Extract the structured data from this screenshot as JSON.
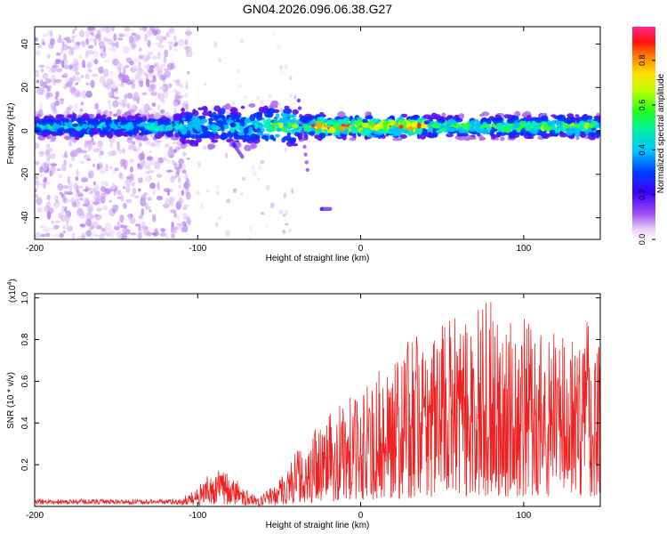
{
  "title": "GN04.2026.096.06.38.G27",
  "chart_data": [
    {
      "type": "heatmap",
      "name": "spectrogram",
      "xlabel": "Height of straight line (km)",
      "ylabel": "Frequency (Hz)",
      "xlim": [
        -200,
        147
      ],
      "ylim": [
        -50,
        48
      ],
      "xticks": [
        {
          "value": -200,
          "label": "-200"
        },
        {
          "value": -100,
          "label": "-100"
        },
        {
          "value": 0,
          "label": "0"
        },
        {
          "value": 100,
          "label": "100"
        }
      ],
      "yticks": [
        {
          "value": 40,
          "label": "40"
        },
        {
          "value": 20,
          "label": "20"
        },
        {
          "value": 0,
          "label": "0"
        },
        {
          "value": -20,
          "label": "-20"
        },
        {
          "value": -40,
          "label": "-40"
        }
      ],
      "colorbar": {
        "label": "Normalized spectral amplitude",
        "range": [
          0,
          0.95
        ],
        "ticks": [
          {
            "value": 0.0,
            "label": "0.0"
          },
          {
            "value": 0.2,
            "label": "0.2"
          },
          {
            "value": 0.4,
            "label": "0.4"
          },
          {
            "value": 0.6,
            "label": "0.6"
          },
          {
            "value": 0.8,
            "label": "0.8"
          }
        ],
        "colors": [
          "#ffffff",
          "#d9b3f5",
          "#8a2be2",
          "#3a00ff",
          "#0030ff",
          "#00c8ff",
          "#00ff60",
          "#80ff00",
          "#ffff00",
          "#ff8000",
          "#ff0000",
          "#ff2080"
        ]
      },
      "features": {
        "noise_band_x": [
          -200,
          -105
        ],
        "ridge_freq_hz": 2,
        "ridge_spread_hz": 4
      }
    },
    {
      "type": "line",
      "name": "snr",
      "xlabel": "Height of straight line (km)",
      "ylabel": "SNR (10 * v/v)",
      "yscale_label": "(x10",
      "yscale_exponent": "4",
      "yscale_suffix": ")",
      "color": "#ee2222",
      "xlim": [
        -200,
        147
      ],
      "ylim": [
        0,
        1.02
      ],
      "xticks": [
        {
          "value": -200,
          "label": "-200"
        },
        {
          "value": -100,
          "label": "-100"
        },
        {
          "value": 0,
          "label": "0"
        },
        {
          "value": 100,
          "label": "100"
        }
      ],
      "yticks": [
        {
          "value": 1.0,
          "label": "1.0"
        },
        {
          "value": 0.8,
          "label": "0.8"
        },
        {
          "value": 0.6,
          "label": "0.6"
        },
        {
          "value": 0.4,
          "label": "0.4"
        },
        {
          "value": 0.2,
          "label": "0.2"
        }
      ],
      "envelope": {
        "x": [
          -200,
          -120,
          -105,
          -95,
          -88,
          -80,
          -70,
          -65,
          -60,
          -55,
          -45,
          -35,
          -25,
          -15,
          -10,
          0,
          10,
          20,
          30,
          40,
          50,
          60,
          70,
          80,
          90,
          100,
          110,
          120,
          130,
          140,
          147
        ],
        "y": [
          0.03,
          0.03,
          0.06,
          0.14,
          0.18,
          0.16,
          0.08,
          0.05,
          0.06,
          0.1,
          0.2,
          0.32,
          0.4,
          0.48,
          0.52,
          0.55,
          0.65,
          0.75,
          0.8,
          0.85,
          0.9,
          0.92,
          0.95,
          1.0,
          0.9,
          0.9,
          0.88,
          0.86,
          0.9,
          0.92,
          0.85
        ]
      }
    }
  ]
}
